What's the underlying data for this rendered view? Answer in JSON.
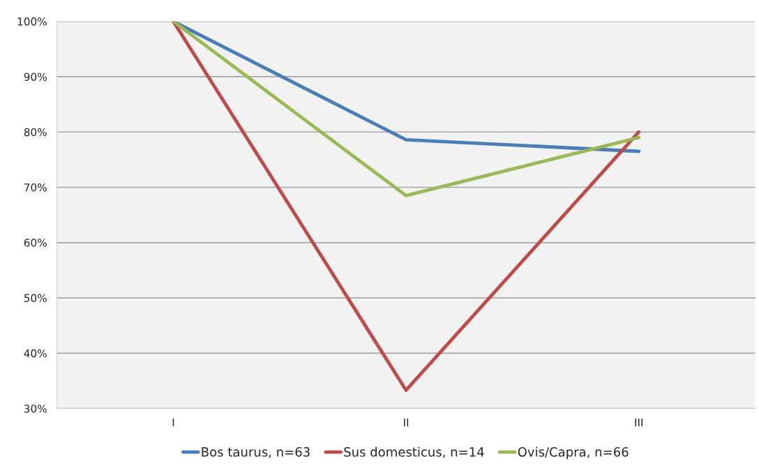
{
  "chart_data": {
    "type": "line",
    "categories": [
      "I",
      "II",
      "III"
    ],
    "series": [
      {
        "name": "Bos taurus, n=63",
        "color": "#4a7ebb",
        "values": [
          100,
          78.6,
          76.5
        ]
      },
      {
        "name": "Sus domesticus, n=14",
        "color": "#be4b48",
        "values": [
          100,
          33.3,
          80
        ]
      },
      {
        "name": "Ovis/Capra, n=66",
        "color": "#98b954",
        "values": [
          100,
          68.5,
          79
        ]
      }
    ],
    "ylim": [
      30,
      100
    ],
    "yticks": [
      {
        "value": 30,
        "label": "30%"
      },
      {
        "value": 40,
        "label": "40%"
      },
      {
        "value": 50,
        "label": "50%"
      },
      {
        "value": 60,
        "label": "60%"
      },
      {
        "value": 70,
        "label": "70%"
      },
      {
        "value": 80,
        "label": "80%"
      },
      {
        "value": 90,
        "label": "90%"
      },
      {
        "value": 100,
        "label": "100%"
      }
    ],
    "grid": "y",
    "legend": "bottom",
    "marker": "none",
    "line_style": "solid"
  }
}
